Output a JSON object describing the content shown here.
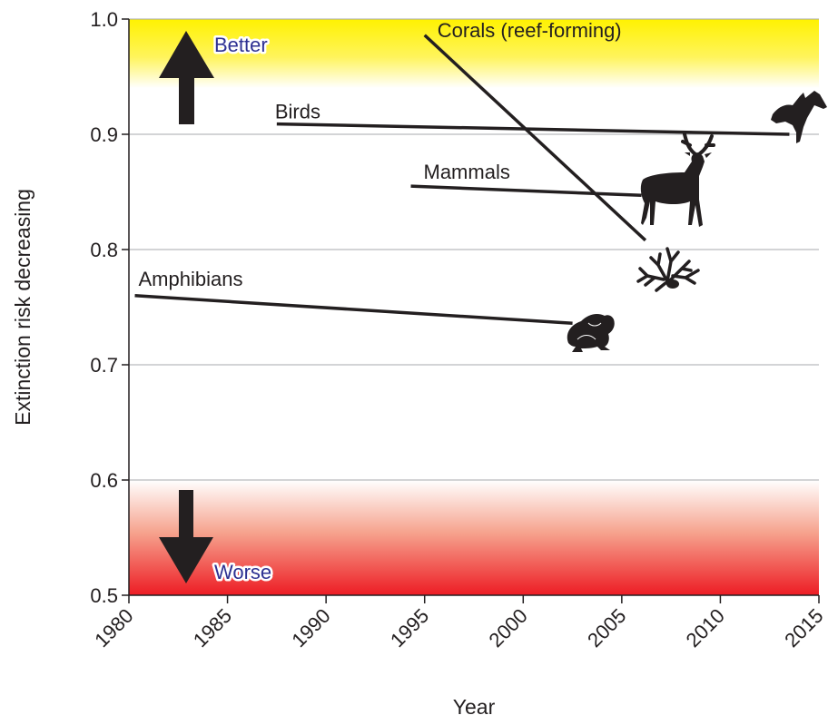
{
  "chart_data": {
    "type": "line",
    "title": "",
    "xlabel": "Year",
    "ylabel": "Extinction risk decreasing",
    "xlim": [
      1980,
      2015
    ],
    "ylim": [
      0.5,
      1.0
    ],
    "x_ticks": [
      1980,
      1985,
      1990,
      1995,
      2000,
      2005,
      2010,
      2015
    ],
    "y_ticks": [
      "0.5",
      "0.6",
      "0.7",
      "0.8",
      "0.9",
      "1.0"
    ],
    "grid": "horizontal",
    "series": [
      {
        "name": "Birds",
        "x": [
          1987.5,
          2013.5
        ],
        "y": [
          0.909,
          0.9
        ]
      },
      {
        "name": "Mammals",
        "x": [
          1994.3,
          2006.0
        ],
        "y": [
          0.855,
          0.847
        ]
      },
      {
        "name": "Corals (reef-forming)",
        "x": [
          1995.0,
          2006.2
        ],
        "y": [
          0.986,
          0.808
        ]
      },
      {
        "name": "Amphibians",
        "x": [
          1980.3,
          2002.5
        ],
        "y": [
          0.76,
          0.736
        ]
      }
    ],
    "zones": [
      {
        "label": "Better",
        "from": 0.94,
        "to": 1.0,
        "color": "#fff200"
      },
      {
        "label": "Worse",
        "from": 0.5,
        "to": 0.6,
        "color": "#ed1c24"
      }
    ],
    "icons": [
      "bird-icon",
      "deer-icon",
      "coral-icon",
      "frog-icon"
    ],
    "colors": {
      "line": "#231f20",
      "grid": "#a7a9ac",
      "better": "#fff200",
      "worse": "#ed1c24",
      "zone_text": "#2e3192"
    }
  }
}
